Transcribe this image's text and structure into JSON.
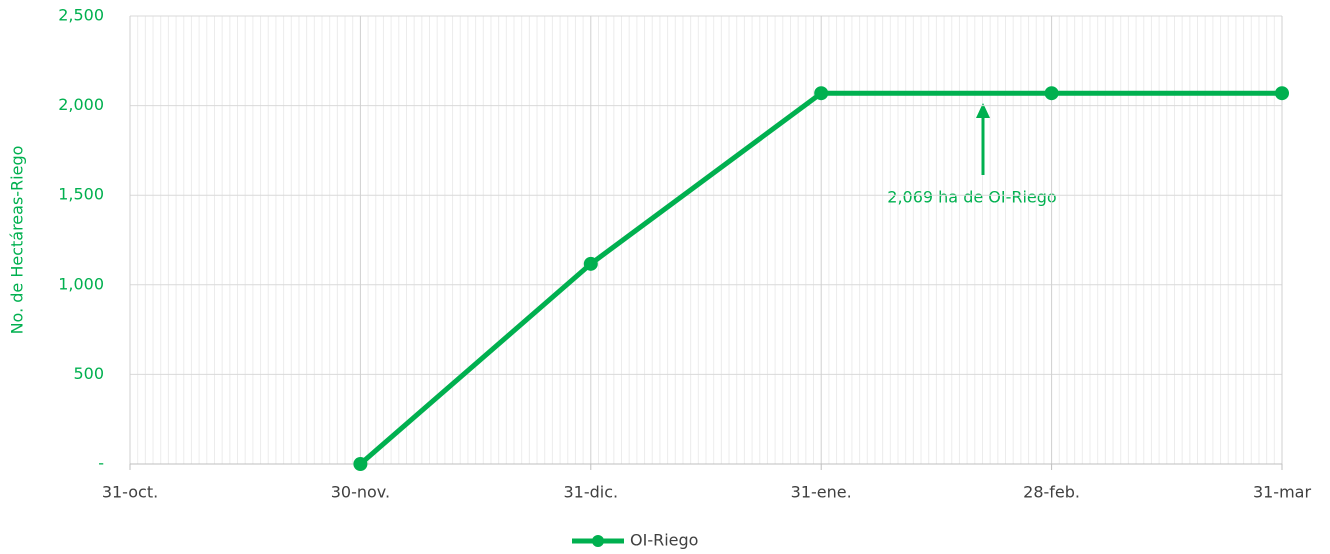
{
  "chart_data": {
    "type": "line",
    "y_label": "No. de Hectáreas-Riego",
    "categories": [
      "31-oct.",
      "30-nov.",
      "31-dic.",
      "31-ene.",
      "28-feb.",
      "31-mar"
    ],
    "series": [
      {
        "name": "OI-Riego",
        "color": "#00b04f",
        "values": [
          null,
          0,
          1117,
          2069,
          2069,
          2069
        ]
      }
    ],
    "ylim": [
      0,
      2500
    ],
    "yticks": [
      {
        "value": 0,
        "label": "-"
      },
      500,
      {
        "value": 1000,
        "label": "1,000"
      },
      {
        "value": 1500,
        "label": "1,500"
      },
      {
        "value": 2000,
        "label": "2,000"
      },
      {
        "value": 2500,
        "label": "2,500"
      }
    ],
    "grid": true,
    "legend": "bottom",
    "annotation": "2,069 ha de OI-Riego"
  }
}
